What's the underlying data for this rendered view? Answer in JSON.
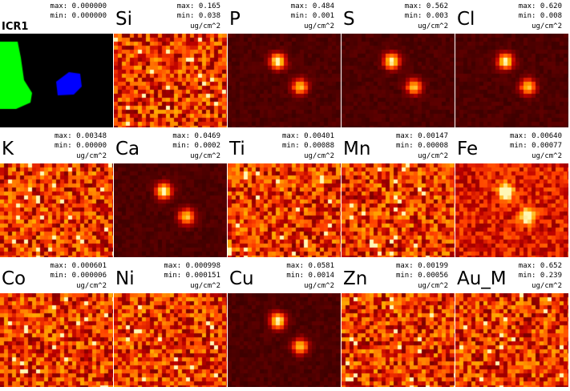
{
  "panels": [
    {
      "element": "ICR1",
      "max_label": "max:",
      "max": "0.000000",
      "min_label": "min:",
      "min": "0.000000",
      "unit": "",
      "map": "roi"
    },
    {
      "element": "Si",
      "max_label": "max:",
      "max": "0.165",
      "min_label": "min:",
      "min": "0.038",
      "unit": "ug/cm^2",
      "map": "noise"
    },
    {
      "element": "P",
      "max_label": "max:",
      "max": "0.484",
      "min_label": "min:",
      "min": "0.001",
      "unit": "ug/cm^2",
      "map": "spots"
    },
    {
      "element": "S",
      "max_label": "max:",
      "max": "0.562",
      "min_label": "min:",
      "min": "0.003",
      "unit": "ug/cm^2",
      "map": "spots"
    },
    {
      "element": "Cl",
      "max_label": "max:",
      "max": "0.620",
      "min_label": "min:",
      "min": "0.008",
      "unit": "ug/cm^2",
      "map": "spots"
    },
    {
      "element": "K",
      "max_label": "max:",
      "max": "0.00348",
      "min_label": "min:",
      "min": "0.00000",
      "unit": "ug/cm^2",
      "map": "noise"
    },
    {
      "element": "Ca",
      "max_label": "max:",
      "max": "0.0469",
      "min_label": "min:",
      "min": "0.0002",
      "unit": "ug/cm^2",
      "map": "spots"
    },
    {
      "element": "Ti",
      "max_label": "max:",
      "max": "0.00401",
      "min_label": "min:",
      "min": "0.00088",
      "unit": "ug/cm^2",
      "map": "noise"
    },
    {
      "element": "Mn",
      "max_label": "max:",
      "max": "0.00147",
      "min_label": "min:",
      "min": "0.00008",
      "unit": "ug/cm^2",
      "map": "noise"
    },
    {
      "element": "Fe",
      "max_label": "max:",
      "max": "0.00640",
      "min_label": "min:",
      "min": "0.00077",
      "unit": "ug/cm^2",
      "map": "spots_noisy"
    },
    {
      "element": "Co",
      "max_label": "max:",
      "max": "0.000601",
      "min_label": "min:",
      "min": "0.000006",
      "unit": "ug/cm^2",
      "map": "noise"
    },
    {
      "element": "Ni",
      "max_label": "max:",
      "max": "0.000998",
      "min_label": "min:",
      "min": "0.000151",
      "unit": "ug/cm^2",
      "map": "noise"
    },
    {
      "element": "Cu",
      "max_label": "max:",
      "max": "0.0581",
      "min_label": "min:",
      "min": "0.0014",
      "unit": "ug/cm^2",
      "map": "spots"
    },
    {
      "element": "Zn",
      "max_label": "max:",
      "max": "0.00199",
      "min_label": "min:",
      "min": "0.00056",
      "unit": "ug/cm^2",
      "map": "noise"
    },
    {
      "element": "Au_M",
      "max_label": "max:",
      "max": "0.652",
      "min_label": "min:",
      "min": "0.239",
      "unit": "ug/cm^2",
      "map": "noise"
    }
  ],
  "colors": {
    "background": "#ffffff",
    "text": "#000000",
    "map_background": "#000000",
    "roi_green": "#00ff00",
    "roi_blue": "#0000ff",
    "heat_low": "#3a0000",
    "heat_mid": "#c83000",
    "heat_high": "#ffe080"
  }
}
